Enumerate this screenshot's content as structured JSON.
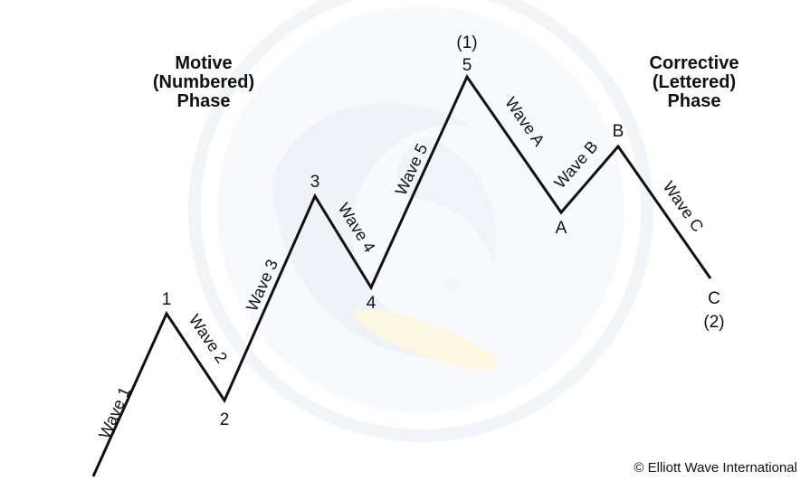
{
  "motive_phase": {
    "line1": "Motive",
    "line2": "(Numbered)",
    "line3": "Phase"
  },
  "corrective_phase": {
    "line1": "Corrective",
    "line2": "(Lettered)",
    "line3": "Phase"
  },
  "points": {
    "p1": "1",
    "p2": "2",
    "p3": "3",
    "p4": "4",
    "p5": "5",
    "p5_degree": "(1)",
    "pA": "A",
    "pB": "B",
    "pC": "C",
    "pC_degree": "(2)"
  },
  "waves": {
    "w1": "Wave 1",
    "w2": "Wave 2",
    "w3": "Wave 3",
    "w4": "Wave 4",
    "w5": "Wave 5",
    "wA": "Wave A",
    "wB": "Wave B",
    "wC": "Wave C"
  },
  "copyright": "© Elliott Wave International",
  "colors": {
    "line": "#111111",
    "watermark": "#dde3ee",
    "watermark_accent": "#f6efc4"
  }
}
